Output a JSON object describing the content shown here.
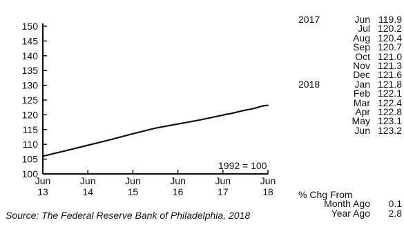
{
  "chart_data": {
    "type": "line",
    "annotation": "1992 = 100",
    "y_ticks": [
      150,
      145,
      140,
      135,
      130,
      125,
      120,
      115,
      110,
      105,
      100
    ],
    "x_ticks": [
      {
        "month": "Jun",
        "year": "13"
      },
      {
        "month": "Jun",
        "year": "14"
      },
      {
        "month": "Jun",
        "year": "15"
      },
      {
        "month": "Jun",
        "year": "16"
      },
      {
        "month": "Jun",
        "year": "17"
      },
      {
        "month": "Jun",
        "year": "18"
      }
    ],
    "ylim": [
      100,
      150
    ],
    "x_range": [
      "2013-06",
      "2018-06"
    ],
    "grid": false,
    "series": [
      {
        "color": "#111111",
        "x": [
          "2013-06",
          "2013-12",
          "2014-06",
          "2014-12",
          "2015-06",
          "2015-12",
          "2016-06",
          "2016-12",
          "2017-06",
          "2017-07",
          "2017-08",
          "2017-09",
          "2017-10",
          "2017-11",
          "2017-12",
          "2018-01",
          "2018-02",
          "2018-03",
          "2018-04",
          "2018-05",
          "2018-06"
        ],
        "values": [
          106.0,
          107.8,
          109.7,
          111.6,
          113.6,
          115.5,
          116.9,
          118.3,
          119.9,
          120.2,
          120.4,
          120.7,
          121.0,
          121.3,
          121.6,
          121.8,
          122.1,
          122.4,
          122.8,
          123.1,
          123.2
        ]
      }
    ]
  },
  "table": {
    "rows": [
      {
        "year": "2017",
        "month": "Jun",
        "value": "119.9"
      },
      {
        "year": "",
        "month": "Jul",
        "value": "120.2"
      },
      {
        "year": "",
        "month": "Aug",
        "value": "120.4"
      },
      {
        "year": "",
        "month": "Sep",
        "value": "120.7"
      },
      {
        "year": "",
        "month": "Oct",
        "value": "121.0"
      },
      {
        "year": "",
        "month": "Nov",
        "value": "121.3"
      },
      {
        "year": "",
        "month": "Dec",
        "value": "121.6"
      },
      {
        "year": "2018",
        "month": "Jan",
        "value": "121.8"
      },
      {
        "year": "",
        "month": "Feb",
        "value": "122.1"
      },
      {
        "year": "",
        "month": "Mar",
        "value": "122.4"
      },
      {
        "year": "",
        "month": "Apr",
        "value": "122.8"
      },
      {
        "year": "",
        "month": "May",
        "value": "123.1"
      },
      {
        "year": "",
        "month": "Jun",
        "value": "123.2"
      }
    ],
    "change_title": "% Chg From",
    "change_rows": [
      {
        "label": "Month Ago",
        "value": "0.1"
      },
      {
        "label": "Year Ago",
        "value": "2.8"
      }
    ]
  },
  "source": "Source:  The Federal Reserve Bank of Philadelphia, 2018"
}
